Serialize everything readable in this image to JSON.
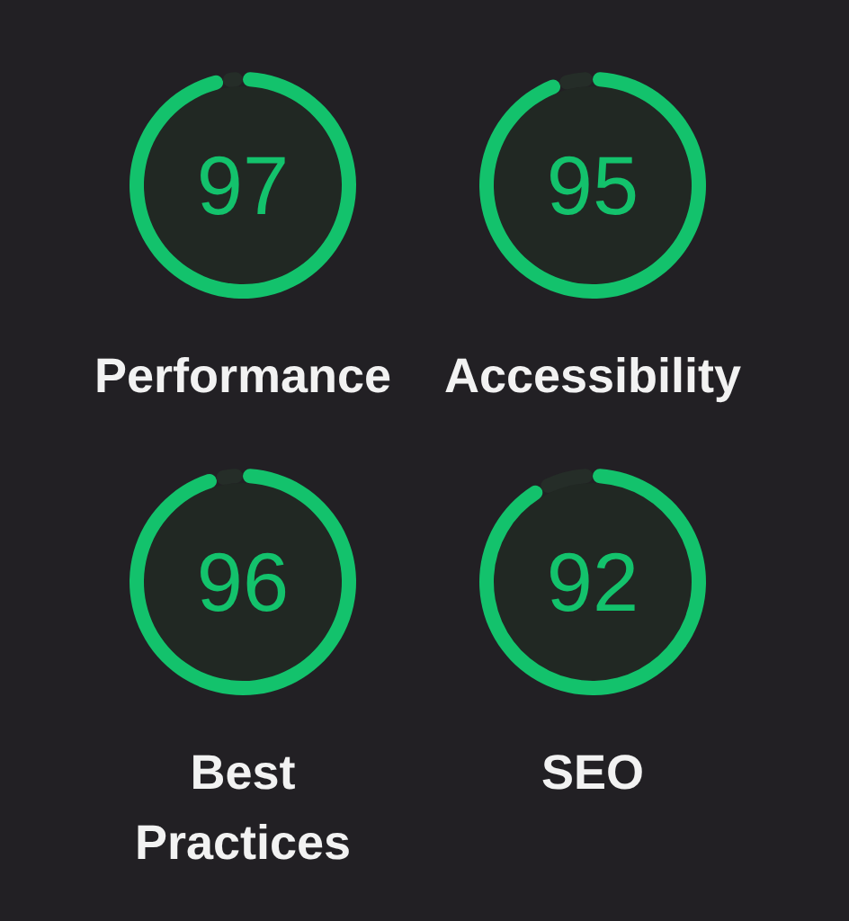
{
  "chart_data": [
    {
      "type": "donut",
      "title": "Performance",
      "categories": [
        null,
        null
      ],
      "values": [
        97,
        3
      ],
      "colors": [
        "#13c26c",
        "#252d28"
      ],
      "value_labels": [
        "97",
        null
      ]
    },
    {
      "type": "donut",
      "title": "Accessibility",
      "categories": [
        null,
        null
      ],
      "values": [
        95,
        5
      ],
      "colors": [
        "#13c26c",
        "#252d28"
      ],
      "value_labels": [
        "95",
        null
      ]
    },
    {
      "type": "donut",
      "title": "Best Practices",
      "categories": [
        null,
        null
      ],
      "values": [
        96,
        4
      ],
      "colors": [
        "#13c26c",
        "#252d28"
      ],
      "value_labels": [
        "96",
        null
      ]
    },
    {
      "type": "donut",
      "title": "SEO",
      "categories": [
        null,
        null
      ],
      "values": [
        92,
        8
      ],
      "colors": [
        "#13c26c",
        "#252d28"
      ],
      "value_labels": [
        "92",
        null
      ]
    }
  ]
}
